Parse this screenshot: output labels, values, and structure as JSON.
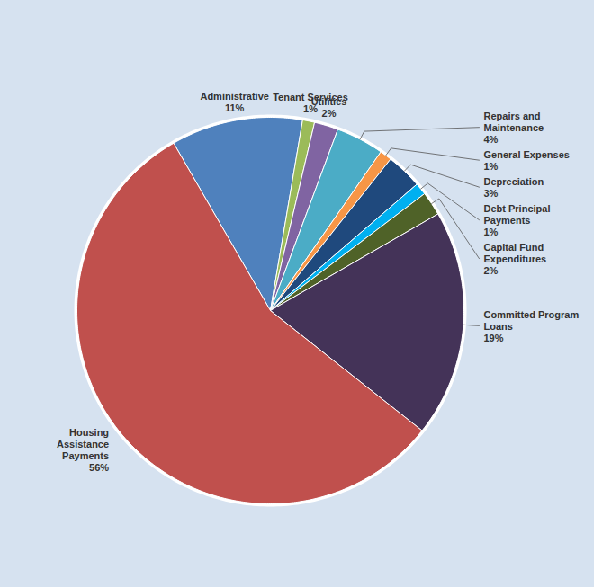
{
  "chart_data": {
    "type": "pie",
    "categories": [
      "Administrative",
      "Tenant Services",
      "Utilities",
      "Repairs and Maintenance",
      "General Expenses",
      "Depreciation",
      "Debt Principal Payments",
      "Capital Fund Expenditures",
      "Committed Program Loans",
      "Housing Assistance Payments"
    ],
    "values": [
      11,
      1,
      2,
      4,
      1,
      3,
      1,
      2,
      19,
      56
    ],
    "value_labels": [
      "11%",
      "1%",
      "2%",
      "4%",
      "1%",
      "3%",
      "1%",
      "2%",
      "19%",
      "56%"
    ],
    "colors": [
      "#4f81bd",
      "#9bbb59",
      "#8064a2",
      "#4bacc6",
      "#f79646",
      "#1f497d",
      "#00b0f0",
      "#4f6228",
      "#443358",
      "#c0504d"
    ],
    "data_labels": true
  }
}
